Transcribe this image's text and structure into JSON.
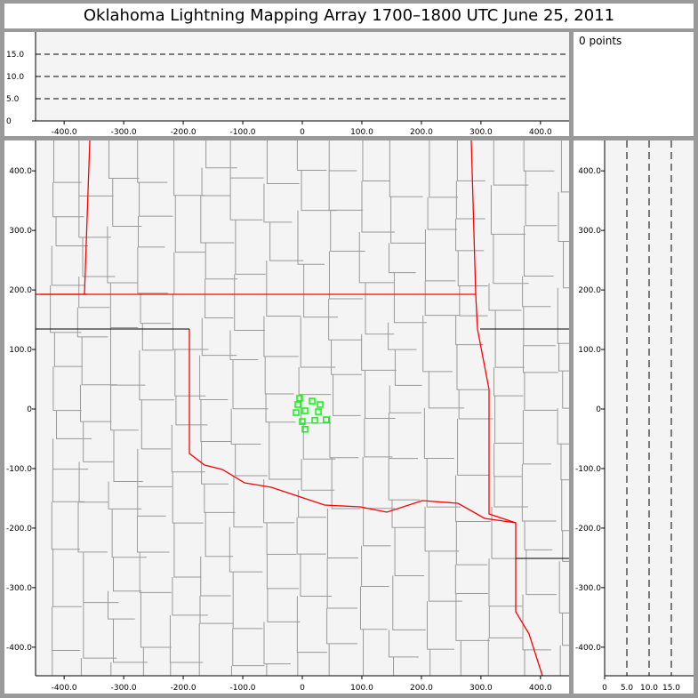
{
  "title": "Oklahoma Lightning Mapping Array   1700–1800 UTC  June 25, 2011",
  "count_label": "0 points",
  "colors": {
    "plot_bg": "#f4f4f4",
    "county": "#999999",
    "state_border": "#ff0000",
    "station": "#00ff00",
    "axis": "#000000"
  },
  "chart_data": [
    {
      "type": "line",
      "panel": "altitude vs east-west",
      "xlim": [
        -448,
        448
      ],
      "ylim": [
        0,
        20
      ],
      "xticks": [
        "-400.0",
        "-300.0",
        "-200.0",
        "-100.0",
        "0",
        "100.0",
        "200.0",
        "300.0",
        "400.0"
      ],
      "yticks": [
        "0",
        "5.0",
        "10.0",
        "15.0"
      ],
      "reference_lines_y": [
        5,
        10,
        15
      ]
    },
    {
      "type": "scatter",
      "panel": "plan view map",
      "xlim": [
        -448,
        448
      ],
      "ylim": [
        -448,
        451
      ],
      "xticks": [
        "-400.0",
        "-300.0",
        "-200.0",
        "-100.0",
        "0",
        "100.0",
        "200.0",
        "300.0",
        "400.0"
      ],
      "yticks": [
        "-400.0",
        "-300.0",
        "-200.0",
        "-100.0",
        "0",
        "100.0",
        "200.0",
        "300.0",
        "400.0"
      ],
      "stations": [
        {
          "x": -4.5,
          "y": 18
        },
        {
          "x": -7.5,
          "y": 7.5
        },
        {
          "x": -10.5,
          "y": -6
        },
        {
          "x": 4.5,
          "y": -3
        },
        {
          "x": 16.4,
          "y": 13.4
        },
        {
          "x": 30,
          "y": 7.5
        },
        {
          "x": 27,
          "y": -4.5
        },
        {
          "x": 21,
          "y": -19
        },
        {
          "x": 0,
          "y": -21
        },
        {
          "x": 40,
          "y": -18
        },
        {
          "x": 4.5,
          "y": -34
        }
      ]
    },
    {
      "type": "line",
      "panel": "north-south vs altitude",
      "xlim": [
        0,
        20
      ],
      "ylim": [
        -448,
        451
      ],
      "xticks": [
        "0",
        "5.0",
        "10.0",
        "15.0"
      ],
      "yticks": [
        "-400.0",
        "-300.0",
        "-200.0",
        "-100.0",
        "0",
        "100.0",
        "200.0",
        "300.0",
        "400.0"
      ],
      "reference_lines_x": [
        5,
        10,
        15
      ]
    }
  ]
}
